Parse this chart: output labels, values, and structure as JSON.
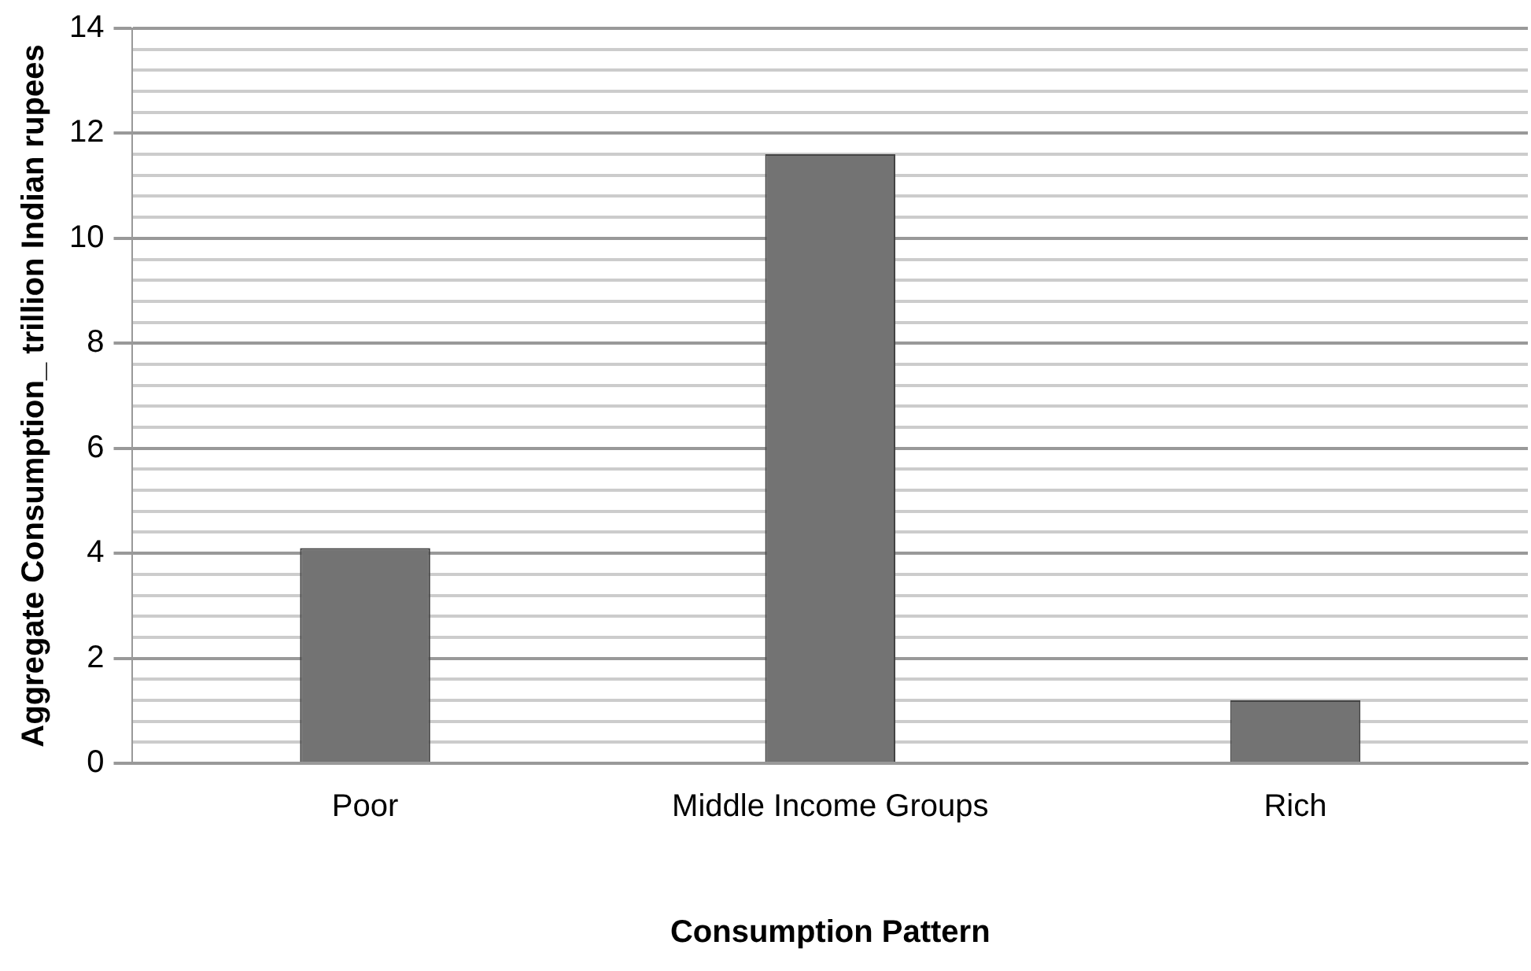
{
  "chart_data": {
    "type": "bar",
    "xlabel": "Consumption Pattern",
    "ylabel": "Aggregate Consumption_ trillion Indian rupees",
    "categories": [
      "Poor",
      "Middle Income Groups",
      "Rich"
    ],
    "values": [
      4.1,
      11.6,
      1.2
    ],
    "color": "#737373",
    "ylim": [
      0,
      14
    ],
    "yticks": [
      0,
      {
        "value": 0.4,
        "label": null
      },
      {
        "value": 0.8,
        "label": null
      },
      {
        "value": 1.2,
        "label": null
      },
      {
        "value": 1.6,
        "label": null
      },
      2,
      {
        "value": 2.4,
        "label": null
      },
      {
        "value": 2.8,
        "label": null
      },
      {
        "value": 3.2,
        "label": null
      },
      {
        "value": 3.6,
        "label": null
      },
      4,
      {
        "value": 4.4,
        "label": null
      },
      {
        "value": 4.8,
        "label": null
      },
      {
        "value": 5.2,
        "label": null
      },
      {
        "value": 5.6,
        "label": null
      },
      6,
      {
        "value": 6.4,
        "label": null
      },
      {
        "value": 6.8,
        "label": null
      },
      {
        "value": 7.2,
        "label": null
      },
      {
        "value": 7.6,
        "label": null
      },
      8,
      {
        "value": 8.4,
        "label": null
      },
      {
        "value": 8.8,
        "label": null
      },
      {
        "value": 9.2,
        "label": null
      },
      {
        "value": 9.6,
        "label": null
      },
      10,
      {
        "value": 10.4,
        "label": null
      },
      {
        "value": 10.8,
        "label": null
      },
      {
        "value": 11.2,
        "label": null
      },
      {
        "value": 11.6,
        "label": null
      },
      12,
      {
        "value": 12.4,
        "label": null
      },
      {
        "value": 12.8,
        "label": null
      },
      {
        "value": 13.2,
        "label": null
      },
      {
        "value": 13.6,
        "label": null
      },
      14
    ],
    "grid": "y"
  }
}
